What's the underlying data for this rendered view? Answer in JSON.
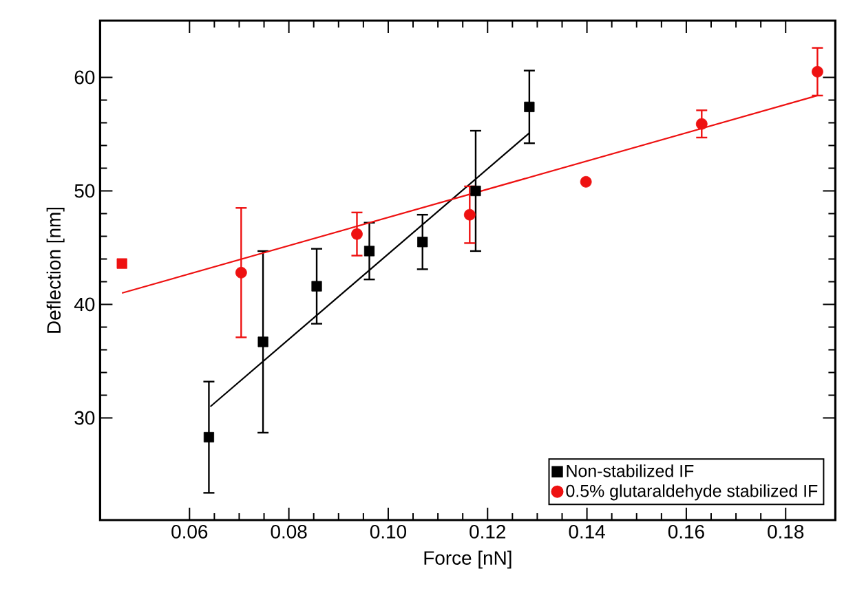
{
  "chart_data": {
    "type": "scatter",
    "xlabel": "Force [nN]",
    "ylabel": "Deflection [nm]",
    "xlim": [
      0.042,
      0.19
    ],
    "ylim": [
      21,
      65
    ],
    "xticks": [
      0.06,
      0.08,
      {
        "value": 0.1,
        "label": "0.10"
      },
      0.12,
      0.14,
      0.16,
      0.18
    ],
    "yticks": [
      30,
      40,
      50,
      60
    ],
    "grid": false,
    "legend": "bottom right",
    "series": [
      {
        "name": "Non-stabilized IF",
        "marker": "square",
        "color": "#000000",
        "x": [
          0.0639,
          0.0748,
          0.0856,
          0.0962,
          0.1069,
          0.1176,
          0.1284
        ],
        "values": [
          28.3,
          36.7,
          41.6,
          44.7,
          45.5,
          50.0,
          57.4
        ],
        "errors": [
          4.9,
          8.0,
          3.3,
          2.5,
          2.4,
          5.3,
          3.2
        ]
      },
      {
        "type": "line",
        "line_style": "solid",
        "color": "#000000",
        "x": [
          0.0642,
          0.1284
        ],
        "values": [
          31.0,
          55.1
        ]
      },
      {
        "name": "0.5% glutaraldehyde stabilized IF",
        "marker": "circle",
        "color": "#ee1111",
        "x": [
          0.0704,
          0.0937,
          0.1164,
          0.1398,
          0.1631,
          0.1864
        ],
        "values": [
          42.8,
          46.2,
          47.9,
          50.8,
          55.9,
          60.5
        ],
        "errors": [
          5.7,
          1.9,
          2.5,
          null,
          1.2,
          2.1
        ]
      },
      {
        "type": "line",
        "line_style": "solid",
        "color": "#ee1111",
        "x": [
          0.0464,
          0.1864
        ],
        "values": [
          41.0,
          58.4
        ]
      },
      {
        "marker": "square",
        "color": "#ee1111",
        "x": [
          0.0464
        ],
        "values": [
          43.6
        ]
      }
    ]
  }
}
